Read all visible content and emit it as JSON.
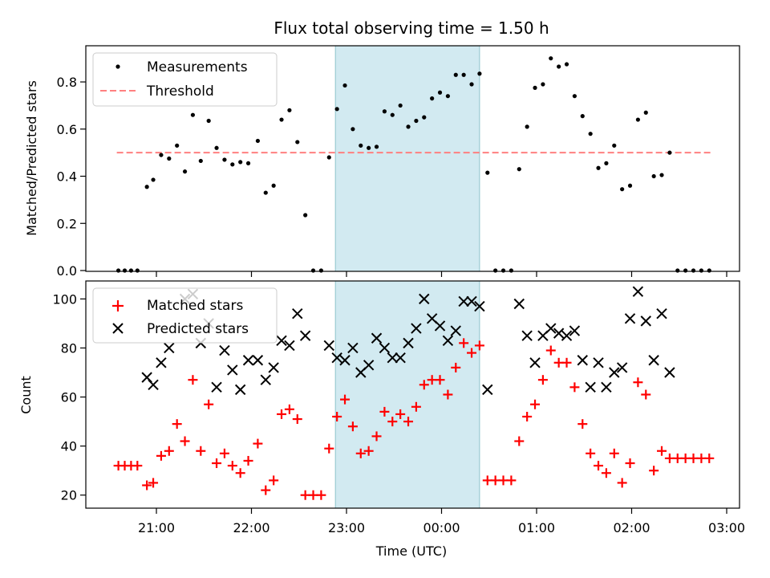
{
  "title": "Flux total observing time = 1.50 h",
  "xlabel": "Time (UTC)",
  "x_ticks": [
    "21:00",
    "22:00",
    "23:00",
    "00:00",
    "01:00",
    "02:00",
    "03:00"
  ],
  "highlight": {
    "start": "22:53",
    "end": "00:24",
    "color": "#add8e6"
  },
  "colors": {
    "measurements": "#000000",
    "threshold": "#ff8080",
    "matched": "#ff0000",
    "predicted": "#000000"
  },
  "chart_data": [
    {
      "type": "scatter",
      "ylabel": "Matched/Predicted stars",
      "ylim": [
        0,
        0.95
      ],
      "y_ticks": [
        "0.0",
        "0.2",
        "0.4",
        "0.6",
        "0.8"
      ],
      "legend": [
        "Measurements",
        "Threshold"
      ],
      "legend_position": "upper-left",
      "threshold": {
        "value": 0.5,
        "x_start": "20:35",
        "x_end": "02:50"
      },
      "series": [
        {
          "marker": "dot",
          "x": [
            "20:36",
            "20:40",
            "20:44",
            "20:48",
            "20:54",
            "20:58",
            "21:03",
            "21:08",
            "21:13",
            "21:18",
            "21:23",
            "21:28",
            "21:33",
            "21:38",
            "21:43",
            "21:48",
            "21:53",
            "21:58",
            "22:04",
            "22:09",
            "22:14",
            "22:19",
            "22:24",
            "22:29",
            "22:34",
            "22:39",
            "22:44",
            "22:49",
            "22:54",
            "22:59",
            "23:04",
            "23:09",
            "23:14",
            "23:19",
            "23:24",
            "23:29",
            "23:34",
            "23:39",
            "23:44",
            "23:49",
            "23:54",
            "23:59",
            "00:04",
            "00:09",
            "00:14",
            "00:19",
            "00:24",
            "00:29",
            "00:34",
            "00:39",
            "00:44",
            "00:49",
            "00:54",
            "00:59",
            "01:04",
            "01:09",
            "01:14",
            "01:19",
            "01:24",
            "01:29",
            "01:34",
            "01:39",
            "01:44",
            "01:49",
            "01:54",
            "01:59",
            "02:04",
            "02:09",
            "02:14",
            "02:19",
            "02:24",
            "02:29",
            "02:34",
            "02:39",
            "02:44",
            "02:49"
          ],
          "y": [
            0,
            0,
            0,
            0,
            0.355,
            0.385,
            0.49,
            0.475,
            0.53,
            0.42,
            0.66,
            0.465,
            0.635,
            0.52,
            0.47,
            0.45,
            0.46,
            0.455,
            0.55,
            0.33,
            0.36,
            0.64,
            0.68,
            0.545,
            0.235,
            0,
            0,
            0.48,
            0.685,
            0.785,
            0.6,
            0.53,
            0.52,
            0.525,
            0.675,
            0.66,
            0.7,
            0.61,
            0.635,
            0.65,
            0.73,
            0.755,
            0.74,
            0.83,
            0.83,
            0.79,
            0.835,
            0.415,
            0,
            0,
            0,
            0.43,
            0.61,
            0.775,
            0.79,
            0.9,
            0.865,
            0.875,
            0.74,
            0.655,
            0.58,
            0.435,
            0.455,
            0.53,
            0.345,
            0.36,
            0.64,
            0.67,
            0.4,
            0.405,
            0.5,
            0,
            0,
            0,
            0,
            0
          ]
        }
      ]
    },
    {
      "type": "scatter",
      "ylabel": "Count",
      "ylim": [
        15,
        107
      ],
      "y_ticks": [
        "20",
        "40",
        "60",
        "80",
        "100"
      ],
      "legend": [
        "Matched stars",
        "Predicted stars"
      ],
      "legend_position": "upper-left",
      "series": [
        {
          "marker": "plus",
          "x": [
            "20:36",
            "20:40",
            "20:44",
            "20:48",
            "20:54",
            "20:58",
            "21:03",
            "21:08",
            "21:13",
            "21:18",
            "21:23",
            "21:28",
            "21:33",
            "21:38",
            "21:43",
            "21:48",
            "21:53",
            "21:58",
            "22:04",
            "22:09",
            "22:14",
            "22:19",
            "22:24",
            "22:29",
            "22:34",
            "22:39",
            "22:44",
            "22:49",
            "22:54",
            "22:59",
            "23:04",
            "23:09",
            "23:14",
            "23:19",
            "23:24",
            "23:29",
            "23:34",
            "23:39",
            "23:44",
            "23:49",
            "23:54",
            "23:59",
            "00:04",
            "00:09",
            "00:14",
            "00:19",
            "00:24",
            "00:29",
            "00:34",
            "00:39",
            "00:44",
            "00:49",
            "00:54",
            "00:59",
            "01:04",
            "01:09",
            "01:14",
            "01:19",
            "01:24",
            "01:29",
            "01:34",
            "01:39",
            "01:44",
            "01:49",
            "01:54",
            "01:59",
            "02:04",
            "02:09",
            "02:14",
            "02:19",
            "02:24",
            "02:29",
            "02:34",
            "02:39",
            "02:44",
            "02:49"
          ],
          "y": [
            32,
            32,
            32,
            32,
            24,
            25,
            36,
            38,
            49,
            42,
            67,
            38,
            57,
            33,
            37,
            32,
            29,
            34,
            41,
            22,
            26,
            53,
            55,
            51,
            20,
            20,
            20,
            39,
            52,
            59,
            48,
            37,
            38,
            44,
            54,
            50,
            53,
            50,
            56,
            65,
            67,
            67,
            61,
            72,
            82,
            78,
            81,
            26,
            26,
            26,
            26,
            42,
            52,
            57,
            67,
            79,
            74,
            74,
            64,
            49,
            37,
            32,
            29,
            37,
            25,
            33,
            66,
            61,
            30,
            38,
            35,
            35,
            35,
            35,
            35,
            35
          ]
        },
        {
          "marker": "x",
          "x": [
            "20:54",
            "20:58",
            "21:03",
            "21:08",
            "21:18",
            "21:23",
            "21:28",
            "21:33",
            "21:38",
            "21:43",
            "21:48",
            "21:53",
            "21:58",
            "22:04",
            "22:09",
            "22:14",
            "22:19",
            "22:24",
            "22:29",
            "22:34",
            "22:49",
            "22:54",
            "22:59",
            "23:04",
            "23:09",
            "23:14",
            "23:19",
            "23:24",
            "23:29",
            "23:34",
            "23:39",
            "23:44",
            "23:49",
            "23:54",
            "23:59",
            "00:04",
            "00:09",
            "00:14",
            "00:19",
            "00:24",
            "00:29",
            "00:49",
            "00:54",
            "00:59",
            "01:04",
            "01:09",
            "01:14",
            "01:19",
            "01:24",
            "01:29",
            "01:34",
            "01:39",
            "01:44",
            "01:49",
            "01:54",
            "01:59",
            "02:04",
            "02:09",
            "02:14",
            "02:19",
            "02:24"
          ],
          "y": [
            68,
            65,
            74,
            80,
            100,
            102,
            82,
            90,
            64,
            79,
            71,
            63,
            75,
            75,
            67,
            72,
            83,
            81,
            94,
            85,
            81,
            76,
            75,
            80,
            70,
            73,
            84,
            80,
            76,
            76,
            82,
            88,
            100,
            92,
            89,
            83,
            87,
            99,
            99,
            97,
            63,
            98,
            85,
            74,
            85,
            88,
            86,
            85,
            87,
            75,
            64,
            74,
            64,
            70,
            72,
            92,
            103,
            91,
            75,
            94,
            70
          ]
        }
      ]
    }
  ]
}
